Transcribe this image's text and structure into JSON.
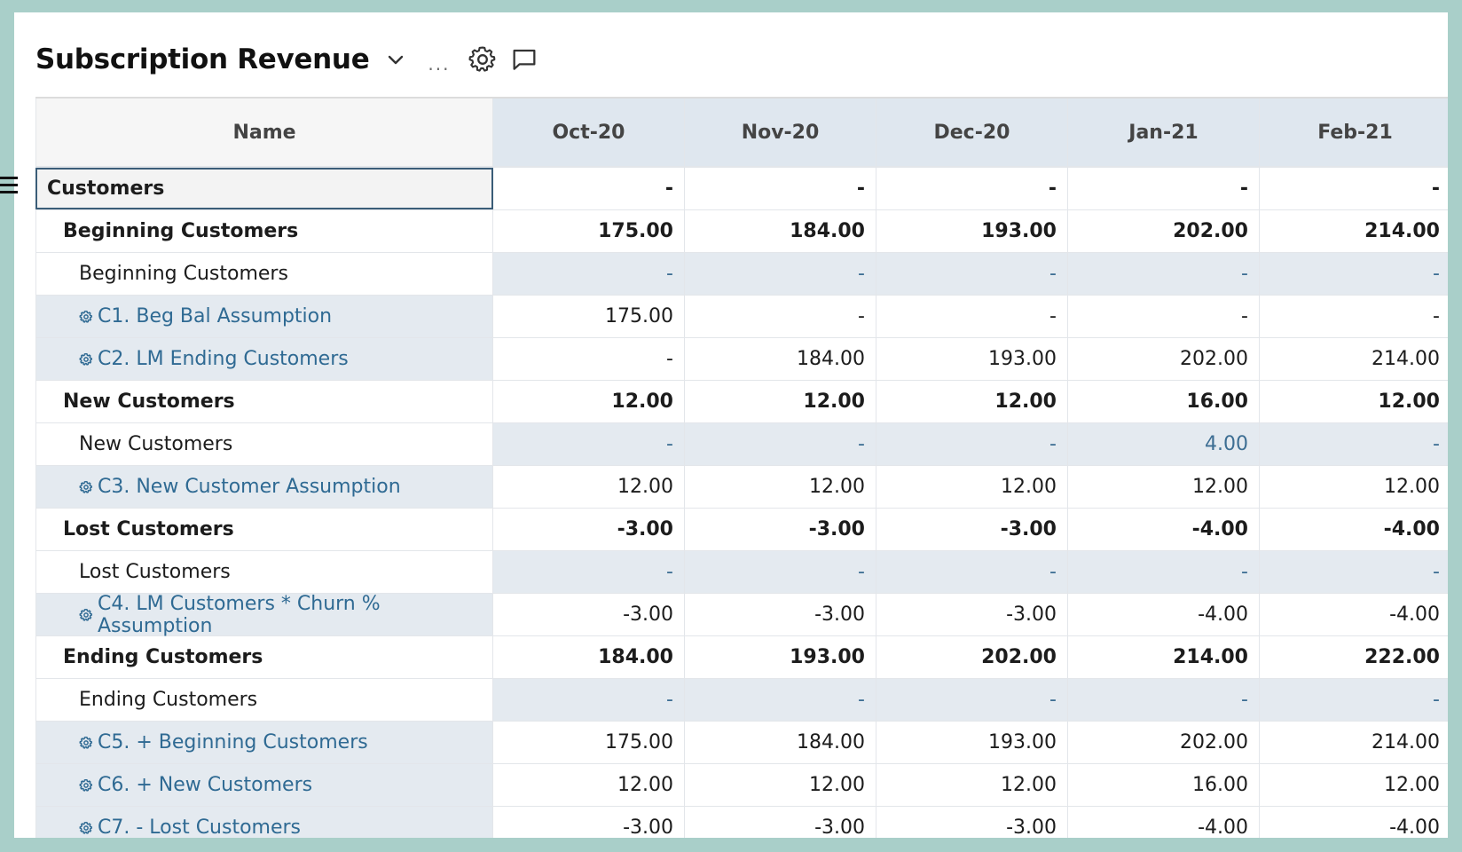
{
  "header": {
    "title": "Subscription Revenue",
    "more_label": "...",
    "icons": [
      "chevron-down-icon",
      "gear-icon",
      "comment-icon"
    ]
  },
  "table": {
    "name_header": "Name",
    "months": [
      "Oct-20",
      "Nov-20",
      "Dec-20",
      "Jan-21",
      "Feb-21"
    ],
    "rows": [
      {
        "label": "Customers",
        "level": 0,
        "values": [
          "-",
          "-",
          "-",
          "-",
          "-"
        ]
      },
      {
        "label": "Beginning Customers",
        "level": 1,
        "values": [
          "175.00",
          "184.00",
          "193.00",
          "202.00",
          "214.00"
        ]
      },
      {
        "label": "Beginning Customers",
        "level": 2,
        "values": [
          "-",
          "-",
          "-",
          "-",
          "-"
        ]
      },
      {
        "label": "C1. Beg Bal Assumption",
        "level": 3,
        "values": [
          "175.00",
          "-",
          "-",
          "-",
          "-"
        ]
      },
      {
        "label": "C2. LM Ending Customers",
        "level": 3,
        "values": [
          "-",
          "184.00",
          "193.00",
          "202.00",
          "214.00"
        ]
      },
      {
        "label": "New Customers",
        "level": 1,
        "values": [
          "12.00",
          "12.00",
          "12.00",
          "16.00",
          "12.00"
        ]
      },
      {
        "label": "New Customers",
        "level": 2,
        "values": [
          "-",
          "-",
          "-",
          "4.00",
          "-"
        ]
      },
      {
        "label": "C3. New Customer Assumption",
        "level": 3,
        "values": [
          "12.00",
          "12.00",
          "12.00",
          "12.00",
          "12.00"
        ]
      },
      {
        "label": "Lost Customers",
        "level": 1,
        "values": [
          "-3.00",
          "-3.00",
          "-3.00",
          "-4.00",
          "-4.00"
        ]
      },
      {
        "label": "Lost Customers",
        "level": 2,
        "values": [
          "-",
          "-",
          "-",
          "-",
          "-"
        ]
      },
      {
        "label": "C4. LM Customers * Churn % Assumption",
        "level": 3,
        "values": [
          "-3.00",
          "-3.00",
          "-3.00",
          "-4.00",
          "-4.00"
        ]
      },
      {
        "label": "Ending Customers",
        "level": 1,
        "values": [
          "184.00",
          "193.00",
          "202.00",
          "214.00",
          "222.00"
        ]
      },
      {
        "label": "Ending Customers",
        "level": 2,
        "values": [
          "-",
          "-",
          "-",
          "-",
          "-"
        ]
      },
      {
        "label": "C5. + Beginning Customers",
        "level": 3,
        "values": [
          "175.00",
          "184.00",
          "193.00",
          "202.00",
          "214.00"
        ]
      },
      {
        "label": "C6. + New Customers",
        "level": 3,
        "values": [
          "12.00",
          "12.00",
          "12.00",
          "16.00",
          "12.00"
        ]
      },
      {
        "label": "C7. - Lost Customers",
        "level": 3,
        "values": [
          "-3.00",
          "-3.00",
          "-3.00",
          "-4.00",
          "-4.00"
        ]
      }
    ]
  }
}
